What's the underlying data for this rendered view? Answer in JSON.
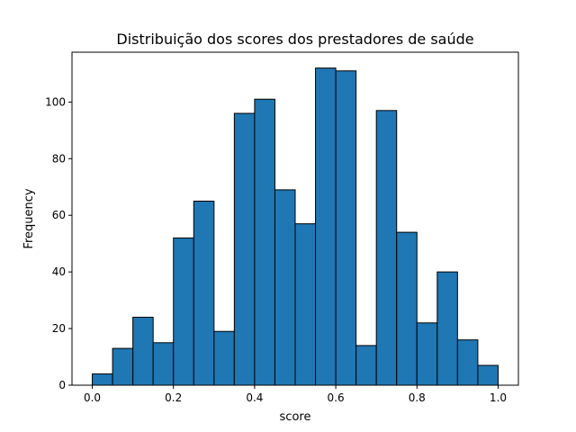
{
  "chart_data": {
    "type": "bar",
    "title": "Distribuição dos scores dos prestadores de saúde",
    "xlabel": "score",
    "ylabel": "Frequency",
    "bin_edges": [
      0.0,
      0.05,
      0.1,
      0.15,
      0.2,
      0.25,
      0.3,
      0.35,
      0.4,
      0.45,
      0.5,
      0.55,
      0.6,
      0.65,
      0.7,
      0.75,
      0.8,
      0.85,
      0.9,
      0.95,
      1.0
    ],
    "values": [
      4,
      13,
      24,
      15,
      52,
      65,
      19,
      96,
      101,
      69,
      57,
      112,
      111,
      14,
      97,
      54,
      22,
      40,
      16,
      7
    ],
    "xlim": [
      -0.05,
      1.05
    ],
    "ylim": [
      0,
      117.6
    ],
    "xticks": [
      0.0,
      0.2,
      0.4,
      0.6,
      0.8,
      1.0
    ],
    "xtick_labels": [
      "0.0",
      "0.2",
      "0.4",
      "0.6",
      "0.8",
      "1.0"
    ],
    "yticks": [
      0,
      20,
      40,
      60,
      80,
      100
    ],
    "ytick_labels": [
      "0",
      "20",
      "40",
      "60",
      "80",
      "100"
    ],
    "grid": false,
    "bar_color": "#1f77b4",
    "edge_color": "#000000"
  }
}
